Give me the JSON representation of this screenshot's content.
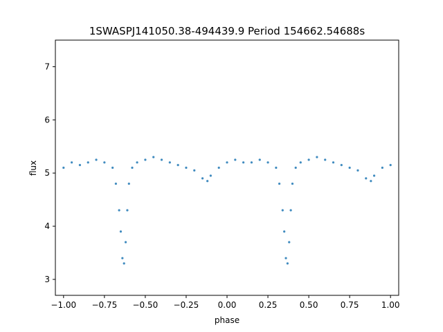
{
  "chart_data": {
    "type": "scatter",
    "title": "1SWASPJ141050.38-494439.9 Period 154662.54688s",
    "xlabel": "phase",
    "ylabel": "flux",
    "xlim": [
      -1.05,
      1.05
    ],
    "ylim": [
      2.7,
      7.5
    ],
    "xticks": [
      -1.0,
      -0.75,
      -0.5,
      -0.25,
      0.0,
      0.25,
      0.5,
      0.75,
      1.0
    ],
    "xtick_labels": [
      "−1.00",
      "−0.75",
      "−0.50",
      "−0.25",
      "0.00",
      "0.25",
      "0.50",
      "0.75",
      "1.00"
    ],
    "yticks": [
      3,
      4,
      5,
      6,
      7
    ],
    "ytick_labels": [
      "3",
      "4",
      "5",
      "6",
      "7"
    ],
    "grid": false,
    "marker_color": "#1f77b4",
    "series": [
      {
        "x": [
          -1.0,
          -0.95,
          -0.9,
          -0.85,
          -0.8,
          -0.75,
          -0.7,
          -0.68,
          -0.66,
          -0.65,
          -0.64,
          -0.63,
          -0.62,
          -0.61,
          -0.6,
          -0.58,
          -0.55,
          -0.5,
          -0.45,
          -0.4,
          -0.35,
          -0.3,
          -0.25,
          -0.2,
          -0.15,
          -0.12,
          -0.1,
          -0.05,
          0.0,
          0.05,
          0.1,
          0.15,
          0.2,
          0.25,
          0.3,
          0.32,
          0.34,
          0.35,
          0.36,
          0.37,
          0.38,
          0.39,
          0.4,
          0.42,
          0.45,
          0.5,
          0.55,
          0.6,
          0.65,
          0.7,
          0.75,
          0.8,
          0.85,
          0.88,
          0.9,
          0.95,
          1.0
        ],
        "y": [
          5.1,
          5.2,
          5.15,
          5.2,
          5.25,
          5.2,
          5.1,
          4.8,
          4.3,
          3.9,
          3.4,
          3.3,
          3.7,
          4.3,
          4.8,
          5.1,
          5.2,
          5.25,
          5.3,
          5.25,
          5.2,
          5.15,
          5.1,
          5.05,
          4.9,
          4.85,
          4.95,
          5.1,
          5.2,
          5.25,
          5.2,
          5.2,
          5.25,
          5.2,
          5.1,
          4.8,
          4.3,
          3.9,
          3.4,
          3.3,
          3.7,
          4.3,
          4.8,
          5.1,
          5.2,
          5.25,
          5.3,
          5.25,
          5.2,
          5.15,
          5.1,
          5.05,
          4.9,
          4.85,
          4.95,
          5.1,
          5.15
        ]
      }
    ]
  }
}
